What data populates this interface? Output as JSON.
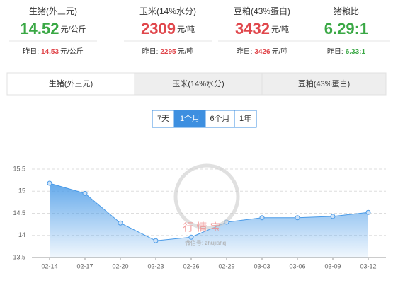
{
  "stats": [
    {
      "name": "生猪(外三元)",
      "value": "14.52",
      "unit": "元/公斤",
      "color": "#3aa845",
      "yesterday_label": "昨日:",
      "yesterday_value": "14.53",
      "yesterday_unit": "元/公斤",
      "yesterday_color": "#e0474c"
    },
    {
      "name": "玉米(14%水分)",
      "value": "2309",
      "unit": "元/吨",
      "color": "#e0474c",
      "yesterday_label": "昨日:",
      "yesterday_value": "2295",
      "yesterday_unit": "元/吨",
      "yesterday_color": "#e0474c"
    },
    {
      "name": "豆粕(43%蛋白)",
      "value": "3432",
      "unit": "元/吨",
      "color": "#e0474c",
      "yesterday_label": "昨日:",
      "yesterday_value": "3426",
      "yesterday_unit": "元/吨",
      "yesterday_color": "#e0474c"
    },
    {
      "name": "猪粮比",
      "value": "6.29:1",
      "unit": null,
      "color": "#3aa845",
      "yesterday_label": "昨日:",
      "yesterday_value": "6.33:1",
      "yesterday_unit": null,
      "yesterday_color": "#3aa845"
    }
  ],
  "tabs": [
    "生猪(外三元)",
    "玉米(14%水分)",
    "豆粕(43%蛋白)"
  ],
  "active_tab": 0,
  "ranges": [
    "7天",
    "1个月",
    "6个月",
    "1年"
  ],
  "active_range": 1,
  "watermark": {
    "title": "行 情 宝",
    "subtitle": "微信号: zhujiahq"
  },
  "chart_data": {
    "type": "area",
    "categories": [
      "02-14",
      "02-17",
      "02-20",
      "02-23",
      "02-26",
      "02-29",
      "03-03",
      "03-06",
      "03-09",
      "03-12"
    ],
    "values": [
      15.18,
      14.95,
      14.28,
      13.88,
      13.96,
      14.3,
      14.4,
      14.4,
      14.43,
      14.52
    ],
    "color": "#4a9be8",
    "ylim": [
      13.5,
      15.5
    ],
    "yticks": [
      13.5,
      14,
      14.5,
      15,
      15.5
    ],
    "grid": true
  }
}
